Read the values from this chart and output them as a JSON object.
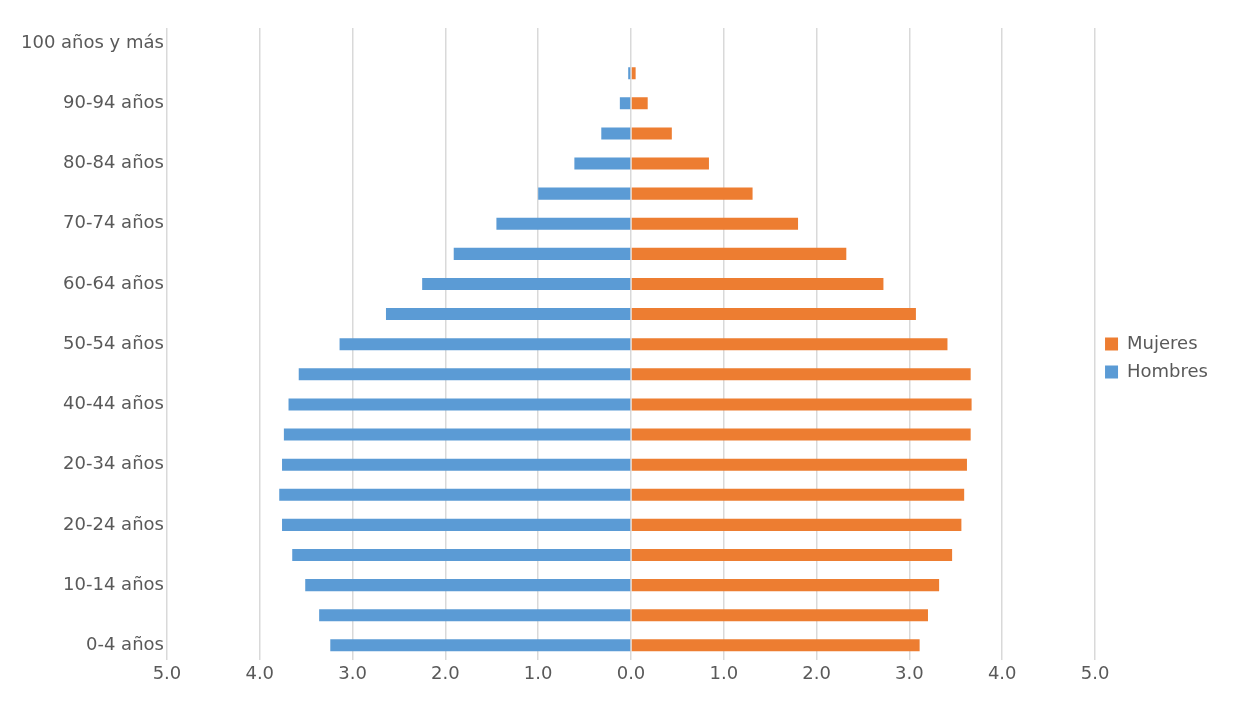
{
  "chart_data": {
    "type": "bar",
    "orientation": "horizontal",
    "stacked": true,
    "categories": [
      "100 años y más",
      null,
      "90-94 años",
      null,
      "80-84 años",
      null,
      "70-74 años",
      null,
      "60-64 años",
      null,
      "50-54 años",
      null,
      "40-44 años",
      null,
      "20-34 años",
      null,
      "20-24 años",
      null,
      "10-14 años",
      null,
      "0-4 años"
    ],
    "series": [
      {
        "name": "Mujeres",
        "color": "#ed7d31",
        "values": [
          0,
          0.05,
          0.18,
          0.44,
          0.84,
          1.31,
          1.8,
          2.32,
          2.72,
          3.07,
          3.41,
          3.66,
          3.67,
          3.66,
          3.62,
          3.59,
          3.56,
          3.46,
          3.32,
          3.2,
          3.11
        ]
      },
      {
        "name": "Hombres",
        "color": "#5b9bd5",
        "values": [
          0,
          -0.03,
          -0.12,
          -0.32,
          -0.61,
          -1.0,
          -1.45,
          -1.91,
          -2.25,
          -2.64,
          -3.14,
          -3.58,
          -3.69,
          -3.74,
          -3.76,
          -3.79,
          -3.76,
          -3.65,
          -3.51,
          -3.36,
          -3.24
        ]
      }
    ],
    "xlim": [
      -5,
      5
    ],
    "xticks": [
      {
        "value": -5,
        "label": "5.0"
      },
      {
        "value": -4,
        "label": "4.0"
      },
      {
        "value": -3,
        "label": "3.0"
      },
      {
        "value": -2,
        "label": "2.0"
      },
      {
        "value": -1,
        "label": "1.0"
      },
      {
        "value": 0,
        "label": "0.0"
      },
      {
        "value": 1,
        "label": "1.0"
      },
      {
        "value": 2,
        "label": "2.0"
      },
      {
        "value": 3,
        "label": "3.0"
      },
      {
        "value": 4,
        "label": "4.0"
      },
      {
        "value": 5,
        "label": "5.0"
      }
    ],
    "grid": "x",
    "legend": "right"
  }
}
